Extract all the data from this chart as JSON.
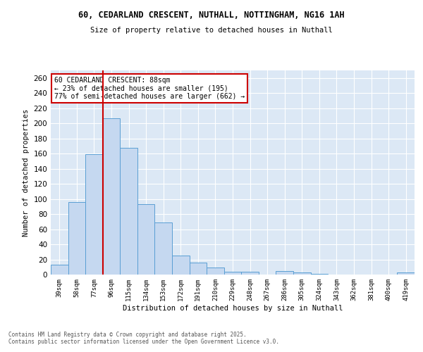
{
  "title_line1": "60, CEDARLAND CRESCENT, NUTHALL, NOTTINGHAM, NG16 1AH",
  "title_line2": "Size of property relative to detached houses in Nuthall",
  "xlabel": "Distribution of detached houses by size in Nuthall",
  "ylabel": "Number of detached properties",
  "categories": [
    "39sqm",
    "58sqm",
    "77sqm",
    "96sqm",
    "115sqm",
    "134sqm",
    "153sqm",
    "172sqm",
    "191sqm",
    "210sqm",
    "229sqm",
    "248sqm",
    "267sqm",
    "286sqm",
    "305sqm",
    "324sqm",
    "343sqm",
    "362sqm",
    "381sqm",
    "400sqm",
    "419sqm"
  ],
  "values": [
    13,
    96,
    159,
    207,
    168,
    93,
    69,
    25,
    16,
    9,
    4,
    4,
    0,
    5,
    3,
    1,
    0,
    0,
    0,
    0,
    3
  ],
  "bar_color": "#c5d8f0",
  "bar_edge_color": "#5a9fd4",
  "vline_x_index": 2.5,
  "vline_color": "#cc0000",
  "annotation_title": "60 CEDARLAND CRESCENT: 88sqm",
  "annotation_line1": "← 23% of detached houses are smaller (195)",
  "annotation_line2": "77% of semi-detached houses are larger (662) →",
  "annotation_box_color": "#cc0000",
  "ylim": [
    0,
    270
  ],
  "yticks": [
    0,
    20,
    40,
    60,
    80,
    100,
    120,
    140,
    160,
    180,
    200,
    220,
    240,
    260
  ],
  "background_color": "#dce8f5",
  "footer_line1": "Contains HM Land Registry data © Crown copyright and database right 2025.",
  "footer_line2": "Contains public sector information licensed under the Open Government Licence v3.0.",
  "grid_color": "#ffffff",
  "fig_bg_color": "#ffffff"
}
